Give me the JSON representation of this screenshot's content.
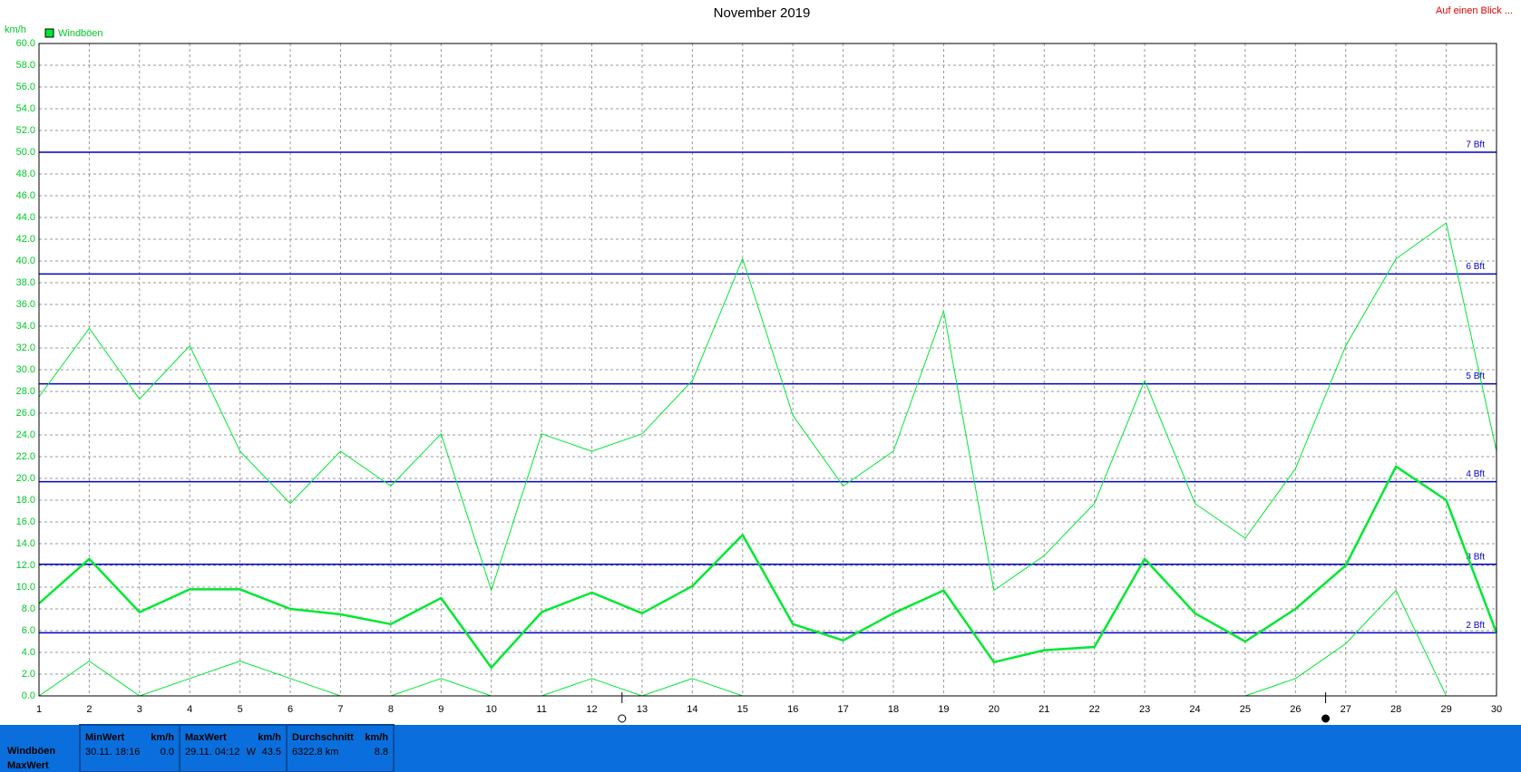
{
  "chart_data": {
    "type": "line",
    "title": "November 2019",
    "corner_link": "Auf einen Blick ...",
    "y_unit": "km/h",
    "x": [
      1,
      2,
      3,
      4,
      5,
      6,
      7,
      8,
      9,
      10,
      11,
      12,
      13,
      14,
      15,
      16,
      17,
      18,
      19,
      20,
      21,
      22,
      23,
      24,
      25,
      26,
      27,
      28,
      29,
      30
    ],
    "xlim": [
      1,
      30
    ],
    "xticks": [
      1,
      2,
      3,
      4,
      5,
      6,
      7,
      8,
      9,
      10,
      11,
      12,
      13,
      14,
      15,
      16,
      17,
      18,
      19,
      20,
      21,
      22,
      23,
      24,
      25,
      26,
      27,
      28,
      29,
      30
    ],
    "ylim": [
      0,
      60
    ],
    "yticks": [
      {
        "value": 0,
        "label": "0.0"
      },
      {
        "value": 2,
        "label": "2.0"
      },
      {
        "value": 4,
        "label": "4.0"
      },
      {
        "value": 6,
        "label": "6.0"
      },
      {
        "value": 8,
        "label": "8.0"
      },
      {
        "value": 10,
        "label": "10.0"
      },
      {
        "value": 12,
        "label": "12.0"
      },
      {
        "value": 14,
        "label": "14.0"
      },
      {
        "value": 16,
        "label": "16.0"
      },
      {
        "value": 18,
        "label": "18.0"
      },
      {
        "value": 20,
        "label": "20.0"
      },
      {
        "value": 22,
        "label": "22.0"
      },
      {
        "value": 24,
        "label": "24.0"
      },
      {
        "value": 26,
        "label": "26.0"
      },
      {
        "value": 28,
        "label": "28.0"
      },
      {
        "value": 30,
        "label": "30.0"
      },
      {
        "value": 32,
        "label": "32.0"
      },
      {
        "value": 34,
        "label": "34.0"
      },
      {
        "value": 36,
        "label": "36.0"
      },
      {
        "value": 38,
        "label": "38.0"
      },
      {
        "value": 40,
        "label": "40.0"
      },
      {
        "value": 42,
        "label": "42.0"
      },
      {
        "value": 44,
        "label": "44.0"
      },
      {
        "value": 46,
        "label": "46.0"
      },
      {
        "value": 48,
        "label": "48.0"
      },
      {
        "value": 50,
        "label": "50.0"
      },
      {
        "value": 52,
        "label": "52.0"
      },
      {
        "value": 54,
        "label": "54.0"
      },
      {
        "value": 56,
        "label": "56.0"
      },
      {
        "value": 58,
        "label": "58.0"
      },
      {
        "value": 60,
        "label": "60.0"
      }
    ],
    "grid": true,
    "series": [
      {
        "name": "Windböen",
        "color": "#00e832",
        "width": 2.5,
        "values": [
          8.5,
          12.6,
          7.7,
          9.8,
          9.8,
          8.0,
          7.5,
          6.6,
          9.0,
          2.6,
          7.7,
          9.5,
          7.6,
          10.1,
          14.8,
          6.6,
          5.1,
          7.6,
          9.7,
          3.1,
          4.2,
          4.5,
          12.6,
          7.6,
          5.0,
          8.0,
          12.0,
          21.1,
          18.0,
          5.8
        ]
      },
      {
        "color": "#00e832",
        "width": 1,
        "values": [
          27.5,
          33.8,
          27.3,
          32.2,
          22.5,
          17.7,
          22.5,
          19.3,
          24.1,
          9.7,
          24.1,
          22.5,
          24.1,
          29.0,
          40.2,
          25.8,
          19.3,
          22.5,
          35.4,
          9.7,
          12.9,
          17.7,
          29.0,
          17.7,
          14.5,
          20.9,
          32.2,
          40.2,
          43.5,
          22.5
        ]
      },
      {
        "color": "#00e832",
        "width": 1,
        "values": [
          0,
          3.2,
          0,
          1.6,
          3.2,
          1.6,
          0,
          0,
          1.6,
          0,
          0,
          1.6,
          0,
          1.6,
          0,
          0,
          0,
          0,
          0,
          0,
          0,
          0,
          0,
          0,
          0,
          1.6,
          4.8,
          9.7,
          0,
          0
        ]
      }
    ],
    "reference_lines": [
      {
        "value": 5.8,
        "label": "2 Bft"
      },
      {
        "value": 12.1,
        "label": "3 Bft"
      },
      {
        "value": 19.7,
        "label": "4 Bft"
      },
      {
        "value": 28.7,
        "label": "5 Bft"
      },
      {
        "value": 38.8,
        "label": "6 Bft"
      },
      {
        "value": 50.0,
        "label": "7 Bft"
      }
    ],
    "reference_color": "#0000c8"
  },
  "summary": {
    "row_labels": [
      "Windböen",
      "MaxWert"
    ],
    "columns": [
      {
        "header": "MinWert",
        "unit": "km/h",
        "time": "30.11.  18:16",
        "value": "0.0"
      },
      {
        "header": "MaxWert",
        "unit": "km/h",
        "time": "29.11.  04:12",
        "dir": "W",
        "value": "43.5"
      },
      {
        "header": "Durchschnitt",
        "unit": "km/h",
        "time": "6322.8 km",
        "value": "8.8"
      }
    ]
  }
}
